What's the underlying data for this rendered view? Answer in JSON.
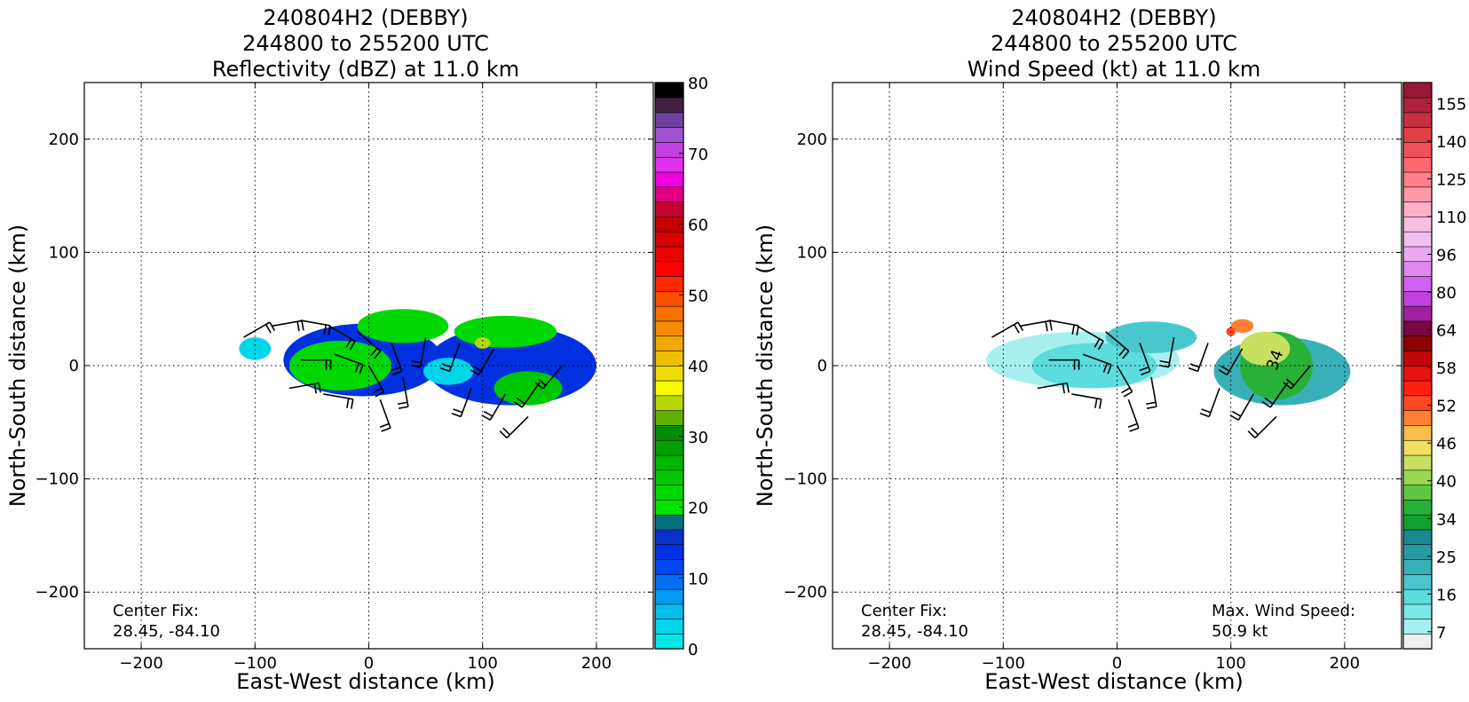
{
  "chart_data": [
    {
      "type": "heatmap",
      "title": [
        "240804H2 (DEBBY)",
        "244800 to 255200 UTC",
        "Reflectivity (dBZ) at 11.0 km"
      ],
      "xlabel": "East-West distance (km)",
      "ylabel": "North-South distance (km)",
      "xlim": [
        -250,
        250
      ],
      "ylim": [
        -250,
        250
      ],
      "xticks": [
        -200,
        -100,
        0,
        100,
        200
      ],
      "yticks": [
        -200,
        -100,
        0,
        100,
        200
      ],
      "xtick_labels": [
        "−200",
        "−100",
        "0",
        "100",
        "200"
      ],
      "ytick_labels": [
        "−200",
        "−100",
        "0",
        "100",
        "200"
      ],
      "grid": true,
      "colorbar": {
        "min": 0,
        "max": 80,
        "ticks": [
          0,
          10,
          20,
          30,
          40,
          50,
          60,
          70,
          80
        ],
        "tick_labels": [
          "0",
          "10",
          "20",
          "30",
          "40",
          "50",
          "60",
          "70",
          "80"
        ],
        "colors": [
          "#00e8e8",
          "#00d6ea",
          "#00bfec",
          "#009cf0",
          "#0070f4",
          "#0045f6",
          "#0030e0",
          "#0a30c8",
          "#067080",
          "#00e400",
          "#00d800",
          "#00c800",
          "#00b400",
          "#00a000",
          "#008e00",
          "#60b000",
          "#b4d800",
          "#fafa00",
          "#f0dc00",
          "#ecc000",
          "#f0a800",
          "#f48c00",
          "#f87000",
          "#ff5000",
          "#ff2800",
          "#ff0000",
          "#ec0000",
          "#d80000",
          "#c40000",
          "#c80030",
          "#e00080",
          "#f000e0",
          "#e030f0",
          "#c040e0",
          "#a050d0",
          "#7040a0",
          "#402040",
          "#000000"
        ]
      },
      "annotations": [
        {
          "lines": [
            "Center Fix:",
            "28.45, -84.10"
          ]
        }
      ],
      "blobs": [
        {
          "x": -5,
          "y": 5,
          "rx": 70,
          "ry": 32,
          "level": 6
        },
        {
          "x": 125,
          "y": 0,
          "rx": 75,
          "ry": 35,
          "level": 6
        },
        {
          "x": -25,
          "y": 0,
          "rx": 45,
          "ry": 22,
          "level": 10
        },
        {
          "x": 30,
          "y": 35,
          "rx": 40,
          "ry": 15,
          "level": 10
        },
        {
          "x": 120,
          "y": 30,
          "rx": 45,
          "ry": 14,
          "level": 10
        },
        {
          "x": 140,
          "y": -20,
          "rx": 30,
          "ry": 15,
          "level": 11
        },
        {
          "x": 70,
          "y": -5,
          "rx": 22,
          "ry": 12,
          "level": 1
        },
        {
          "x": -100,
          "y": 15,
          "rx": 14,
          "ry": 10,
          "level": 1
        },
        {
          "x": 100,
          "y": 20,
          "rx": 7,
          "ry": 5,
          "level": 16
        }
      ],
      "barbs": [
        {
          "x": -110,
          "y": 25,
          "dir": 60
        },
        {
          "x": -85,
          "y": 35,
          "dir": 80
        },
        {
          "x": -60,
          "y": 40,
          "dir": 100
        },
        {
          "x": -35,
          "y": 35,
          "dir": 120
        },
        {
          "x": -10,
          "y": 30,
          "dir": 130
        },
        {
          "x": 20,
          "y": 20,
          "dir": 160
        },
        {
          "x": 50,
          "y": 25,
          "dir": 190
        },
        {
          "x": 80,
          "y": 20,
          "dir": 200
        },
        {
          "x": 110,
          "y": 15,
          "dir": 210
        },
        {
          "x": -60,
          "y": 5,
          "dir": 90
        },
        {
          "x": -30,
          "y": 10,
          "dir": 110
        },
        {
          "x": 0,
          "y": 0,
          "dir": 150
        },
        {
          "x": 30,
          "y": -10,
          "dir": 170
        },
        {
          "x": 90,
          "y": -20,
          "dir": 200
        },
        {
          "x": 120,
          "y": -25,
          "dir": 210
        },
        {
          "x": 150,
          "y": -15,
          "dir": 215
        },
        {
          "x": 170,
          "y": 0,
          "dir": 220
        },
        {
          "x": -70,
          "y": -20,
          "dir": 80
        },
        {
          "x": -40,
          "y": -25,
          "dir": 100
        },
        {
          "x": 10,
          "y": -30,
          "dir": 160
        },
        {
          "x": 140,
          "y": -45,
          "dir": 225
        }
      ]
    },
    {
      "type": "heatmap",
      "title": [
        "240804H2 (DEBBY)",
        "244800 to 255200 UTC",
        "Wind Speed (kt) at 11.0 km"
      ],
      "xlabel": "East-West distance (km)",
      "ylabel": "North-South distance (km)",
      "xlim": [
        -250,
        250
      ],
      "ylim": [
        -250,
        250
      ],
      "xticks": [
        -200,
        -100,
        0,
        100,
        200
      ],
      "yticks": [
        -200,
        -100,
        0,
        100,
        200
      ],
      "xtick_labels": [
        "−200",
        "−100",
        "0",
        "100",
        "200"
      ],
      "ytick_labels": [
        "−200",
        "−100",
        "0",
        "100",
        "200"
      ],
      "grid": true,
      "colorbar": {
        "ticks": [
          7,
          16,
          25,
          34,
          40,
          46,
          52,
          58,
          64,
          80,
          96,
          110,
          125,
          140,
          155
        ],
        "tick_labels": [
          "7",
          "16",
          "25",
          "34",
          "40",
          "46",
          "52",
          "58",
          "64",
          "80",
          "96",
          "110",
          "125",
          "140",
          "155"
        ],
        "label_every": 2,
        "colors": [
          "#f0f0f0",
          "#a8f0f0",
          "#78e8e8",
          "#5cdcdc",
          "#48c8cc",
          "#38b0b8",
          "#289aa4",
          "#1a8890",
          "#10a030",
          "#28b038",
          "#60c840",
          "#98d850",
          "#c8e060",
          "#f0e060",
          "#f8c048",
          "#ff8030",
          "#ff4820",
          "#ff2010",
          "#e81010",
          "#c00808",
          "#900000",
          "#780840",
          "#a020a0",
          "#c040e0",
          "#d060f0",
          "#e088f0",
          "#eaa8f0",
          "#f0c0f0",
          "#f8c0e0",
          "#ffb0c8",
          "#ff98a8",
          "#ff8088",
          "#ff6870",
          "#f05058",
          "#e04048",
          "#c83040",
          "#b02040",
          "#981838"
        ]
      },
      "annotations": [
        {
          "lines": [
            "Center Fix:",
            "28.45, -84.10"
          ]
        },
        {
          "lines": [
            "Max. Wind Speed:",
            "50.9 kt"
          ]
        }
      ],
      "contour_label": "34",
      "blobs": [
        {
          "x": -30,
          "y": 5,
          "rx": 85,
          "ry": 25,
          "level": 1
        },
        {
          "x": 145,
          "y": -5,
          "rx": 60,
          "ry": 30,
          "level": 5
        },
        {
          "x": -20,
          "y": 0,
          "rx": 55,
          "ry": 20,
          "level": 3
        },
        {
          "x": 30,
          "y": 25,
          "rx": 40,
          "ry": 14,
          "level": 4
        },
        {
          "x": 140,
          "y": 0,
          "rx": 32,
          "ry": 30,
          "level": 9
        },
        {
          "x": 130,
          "y": 15,
          "rx": 22,
          "ry": 15,
          "level": 12
        },
        {
          "x": 110,
          "y": 35,
          "rx": 10,
          "ry": 6,
          "level": 15
        },
        {
          "x": 100,
          "y": 30,
          "rx": 4,
          "ry": 4,
          "level": 16
        }
      ],
      "barbs": [
        {
          "x": -110,
          "y": 25,
          "dir": 60
        },
        {
          "x": -85,
          "y": 35,
          "dir": 80
        },
        {
          "x": -60,
          "y": 40,
          "dir": 100
        },
        {
          "x": -35,
          "y": 35,
          "dir": 120
        },
        {
          "x": -10,
          "y": 30,
          "dir": 130
        },
        {
          "x": 20,
          "y": 20,
          "dir": 160
        },
        {
          "x": 50,
          "y": 25,
          "dir": 190
        },
        {
          "x": 80,
          "y": 20,
          "dir": 200
        },
        {
          "x": 110,
          "y": 15,
          "dir": 210
        },
        {
          "x": -60,
          "y": 5,
          "dir": 90
        },
        {
          "x": -30,
          "y": 10,
          "dir": 110
        },
        {
          "x": 0,
          "y": 0,
          "dir": 150
        },
        {
          "x": 30,
          "y": -10,
          "dir": 170
        },
        {
          "x": 90,
          "y": -20,
          "dir": 200
        },
        {
          "x": 120,
          "y": -25,
          "dir": 210
        },
        {
          "x": 150,
          "y": -15,
          "dir": 215
        },
        {
          "x": 170,
          "y": 0,
          "dir": 220
        },
        {
          "x": -70,
          "y": -20,
          "dir": 80
        },
        {
          "x": -40,
          "y": -25,
          "dir": 100
        },
        {
          "x": 10,
          "y": -30,
          "dir": 160
        },
        {
          "x": 140,
          "y": -45,
          "dir": 225
        }
      ]
    }
  ]
}
